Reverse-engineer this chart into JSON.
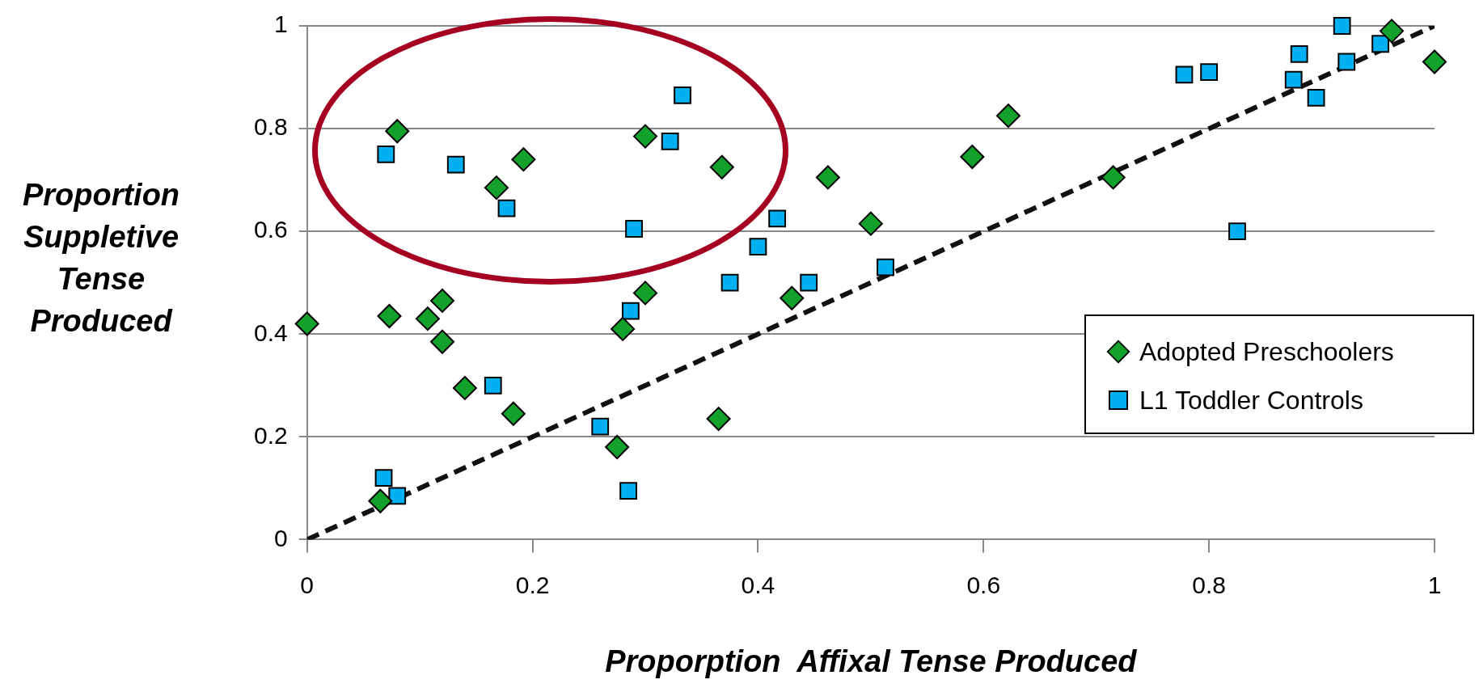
{
  "chart_data": {
    "type": "scatter",
    "xlabel": "Proporption  Affixal Tense Produced",
    "ylabel": "Proportion Suppletive Tense Produced",
    "xlim": [
      0,
      1
    ],
    "ylim": [
      0,
      1
    ],
    "xticks": [
      0,
      0.2,
      0.4,
      0.6,
      0.8,
      1
    ],
    "yticks": [
      0,
      0.2,
      0.4,
      0.6,
      0.8,
      1
    ],
    "grid": "y",
    "legend": "bottom right",
    "series": [
      {
        "name": "Adopted Preschoolers",
        "color": "#12a12a",
        "marker": "diamond",
        "x": [
          0,
          0.065,
          0.073,
          0.08,
          0.107,
          0.12,
          0.12,
          0.14,
          0.168,
          0.183,
          0.192,
          0.275,
          0.28,
          0.3,
          0.3,
          0.365,
          0.368,
          0.43,
          0.462,
          0.5,
          0.59,
          0.622,
          0.715,
          0.962,
          1.0
        ],
        "values": [
          0.42,
          0.075,
          0.435,
          0.795,
          0.43,
          0.465,
          0.385,
          0.295,
          0.685,
          0.245,
          0.74,
          0.18,
          0.41,
          0.785,
          0.48,
          0.235,
          0.725,
          0.47,
          0.705,
          0.615,
          0.745,
          0.825,
          0.705,
          0.99,
          0.93
        ]
      },
      {
        "name": "L1 Toddler Controls",
        "color": "#00b0f0",
        "marker": "square",
        "x": [
          0.068,
          0.07,
          0.08,
          0.132,
          0.165,
          0.177,
          0.26,
          0.285,
          0.287,
          0.29,
          0.322,
          0.333,
          0.375,
          0.4,
          0.417,
          0.445,
          0.513,
          0.778,
          0.8,
          0.825,
          0.875,
          0.88,
          0.895,
          0.918,
          0.922,
          0.952
        ],
        "values": [
          0.12,
          0.75,
          0.085,
          0.73,
          0.3,
          0.645,
          0.22,
          0.095,
          0.445,
          0.605,
          0.775,
          0.865,
          0.5,
          0.57,
          0.625,
          0.5,
          0.53,
          0.905,
          0.91,
          0.6,
          0.895,
          0.945,
          0.86,
          1.0,
          0.93,
          0.965
        ]
      },
      {
        "type": "line",
        "color": "#111111",
        "line_style": "dashed",
        "marker": "none",
        "x": [
          0,
          1
        ],
        "values": [
          0,
          1
        ]
      }
    ]
  }
}
